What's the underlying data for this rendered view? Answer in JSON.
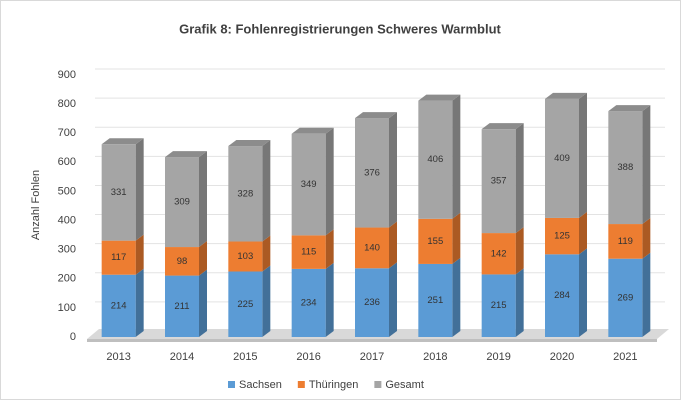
{
  "chart_data": {
    "type": "bar",
    "stacked": true,
    "title": "Grafik 8: Fohlenregistrierungen Schweres Warmblut",
    "y_label": "Anzahl Fohlen",
    "categories": [
      "2013",
      "2014",
      "2015",
      "2016",
      "2017",
      "2018",
      "2019",
      "2020",
      "2021"
    ],
    "series": [
      {
        "name": "Sachsen",
        "color": "#5b9bd5",
        "values": [
          214,
          211,
          225,
          234,
          236,
          251,
          215,
          284,
          269
        ]
      },
      {
        "name": "Thüringen",
        "color": "#ed7d31",
        "values": [
          117,
          98,
          103,
          115,
          140,
          155,
          142,
          125,
          119
        ]
      },
      {
        "name": "Gesamt",
        "color": "#a5a5a5",
        "values": [
          331,
          309,
          328,
          349,
          376,
          406,
          357,
          409,
          388
        ]
      }
    ],
    "ylim": [
      0,
      900
    ],
    "yticks": [
      0,
      100,
      200,
      300,
      400,
      500,
      600,
      700,
      800,
      900
    ],
    "grid": true,
    "legend": "bottom"
  }
}
